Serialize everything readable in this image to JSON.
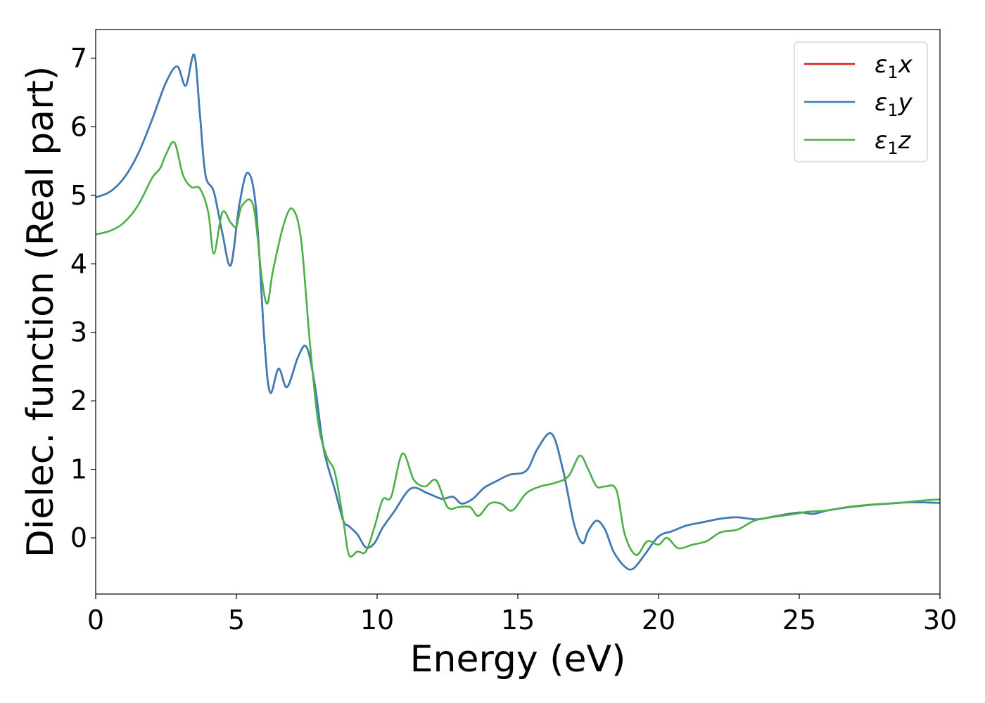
{
  "chart_data": {
    "type": "line",
    "title": "",
    "xlabel": "Energy (eV)",
    "ylabel": "Dielec. function (Real part)",
    "xlim": [
      0,
      30
    ],
    "ylim": [
      -0.82,
      7.42
    ],
    "xticks": [
      0,
      5,
      10,
      15,
      20,
      25,
      30
    ],
    "yticks": [
      0,
      1,
      2,
      3,
      4,
      5,
      6,
      7
    ],
    "grid": false,
    "legend_position": "top-right",
    "legend": [
      {
        "symbol": "ε",
        "subscript": "1",
        "axis": "x",
        "color": "#e41a1c"
      },
      {
        "symbol": "ε",
        "subscript": "1",
        "axis": "y",
        "color": "#377eb8"
      },
      {
        "symbol": "ε",
        "subscript": "1",
        "axis": "z",
        "color": "#4daf4a"
      }
    ],
    "series": [
      {
        "color": "#e41a1c",
        "x": [
          0,
          0.5,
          1.0,
          1.5,
          2.0,
          2.5,
          2.9,
          3.2,
          3.5,
          3.7,
          3.9,
          4.2,
          4.5,
          4.8,
          5.1,
          5.4,
          5.7,
          6.0,
          6.2,
          6.5,
          6.8,
          7.2,
          7.5,
          7.8,
          8.1,
          8.5,
          8.8,
          9.0,
          9.3,
          9.6,
          9.9,
          10.2,
          10.6,
          11.2,
          11.8,
          12.3,
          12.7,
          13.0,
          13.4,
          13.8,
          14.2,
          14.7,
          15.3,
          15.7,
          16.2,
          16.6,
          17.0,
          17.3,
          17.5,
          17.8,
          18.1,
          18.4,
          18.8,
          19.1,
          19.5,
          20.0,
          20.5,
          21.0,
          21.6,
          22.2,
          22.8,
          23.5,
          24.2,
          25.0,
          25.5,
          26.0,
          26.8,
          27.5,
          28.2,
          29.0,
          30.0
        ],
        "y": [
          4.97,
          5.05,
          5.25,
          5.6,
          6.1,
          6.65,
          6.88,
          6.6,
          7.05,
          6.2,
          5.3,
          5.05,
          4.45,
          3.98,
          4.85,
          5.33,
          4.8,
          2.85,
          2.12,
          2.47,
          2.2,
          2.65,
          2.78,
          2.2,
          1.3,
          0.7,
          0.25,
          0.17,
          0.05,
          -0.14,
          -0.08,
          0.15,
          0.38,
          0.72,
          0.65,
          0.57,
          0.6,
          0.5,
          0.57,
          0.73,
          0.82,
          0.92,
          0.98,
          1.3,
          1.52,
          1.0,
          0.2,
          -0.08,
          0.1,
          0.25,
          0.12,
          -0.2,
          -0.42,
          -0.45,
          -0.25,
          0.02,
          0.1,
          0.18,
          0.23,
          0.28,
          0.3,
          0.27,
          0.32,
          0.37,
          0.35,
          0.4,
          0.45,
          0.48,
          0.5,
          0.52,
          0.51
        ]
      },
      {
        "color": "#377eb8",
        "x": [
          0,
          0.5,
          1.0,
          1.5,
          2.0,
          2.5,
          2.9,
          3.2,
          3.5,
          3.7,
          3.9,
          4.2,
          4.5,
          4.8,
          5.1,
          5.4,
          5.7,
          6.0,
          6.2,
          6.5,
          6.8,
          7.2,
          7.5,
          7.8,
          8.1,
          8.5,
          8.8,
          9.0,
          9.3,
          9.6,
          9.9,
          10.2,
          10.6,
          11.2,
          11.8,
          12.3,
          12.7,
          13.0,
          13.4,
          13.8,
          14.2,
          14.7,
          15.3,
          15.7,
          16.2,
          16.6,
          17.0,
          17.3,
          17.5,
          17.8,
          18.1,
          18.4,
          18.8,
          19.1,
          19.5,
          20.0,
          20.5,
          21.0,
          21.6,
          22.2,
          22.8,
          23.5,
          24.2,
          25.0,
          25.5,
          26.0,
          26.8,
          27.5,
          28.2,
          29.0,
          30.0
        ],
        "y": [
          4.97,
          5.05,
          5.25,
          5.6,
          6.1,
          6.65,
          6.88,
          6.6,
          7.05,
          6.2,
          5.3,
          5.05,
          4.45,
          3.98,
          4.85,
          5.33,
          4.8,
          2.85,
          2.12,
          2.47,
          2.2,
          2.65,
          2.78,
          2.2,
          1.3,
          0.7,
          0.25,
          0.17,
          0.05,
          -0.14,
          -0.08,
          0.15,
          0.38,
          0.72,
          0.65,
          0.57,
          0.6,
          0.5,
          0.57,
          0.73,
          0.82,
          0.92,
          0.98,
          1.3,
          1.52,
          1.0,
          0.2,
          -0.08,
          0.1,
          0.25,
          0.12,
          -0.2,
          -0.42,
          -0.45,
          -0.25,
          0.02,
          0.1,
          0.18,
          0.23,
          0.28,
          0.3,
          0.27,
          0.32,
          0.37,
          0.35,
          0.4,
          0.45,
          0.48,
          0.5,
          0.52,
          0.51
        ]
      },
      {
        "color": "#4daf4a",
        "x": [
          0,
          0.5,
          1.0,
          1.5,
          2.0,
          2.3,
          2.5,
          2.8,
          3.1,
          3.4,
          3.7,
          4.0,
          4.2,
          4.5,
          4.8,
          5.0,
          5.2,
          5.6,
          5.9,
          6.1,
          6.3,
          6.7,
          7.0,
          7.3,
          7.6,
          7.9,
          8.2,
          8.5,
          8.8,
          9.0,
          9.3,
          9.6,
          9.9,
          10.2,
          10.5,
          10.9,
          11.3,
          11.7,
          12.1,
          12.5,
          12.9,
          13.3,
          13.6,
          14.0,
          14.4,
          14.8,
          15.3,
          15.8,
          16.3,
          16.8,
          17.2,
          17.5,
          17.8,
          18.1,
          18.5,
          18.8,
          19.2,
          19.6,
          20.0,
          20.3,
          20.7,
          21.2,
          21.7,
          22.2,
          22.8,
          23.4,
          24.0,
          24.7,
          25.3,
          26.0,
          26.7,
          27.4,
          28.1,
          28.8,
          29.5,
          30.0
        ],
        "y": [
          4.43,
          4.48,
          4.6,
          4.85,
          5.25,
          5.4,
          5.6,
          5.77,
          5.3,
          5.12,
          5.1,
          4.75,
          4.15,
          4.75,
          4.6,
          4.55,
          4.85,
          4.85,
          3.8,
          3.42,
          3.9,
          4.6,
          4.8,
          4.35,
          2.9,
          1.7,
          1.2,
          0.95,
          0.25,
          -0.25,
          -0.2,
          -0.2,
          0.15,
          0.56,
          0.6,
          1.23,
          0.85,
          0.75,
          0.84,
          0.45,
          0.45,
          0.45,
          0.32,
          0.5,
          0.5,
          0.4,
          0.65,
          0.75,
          0.8,
          0.9,
          1.2,
          1.0,
          0.75,
          0.75,
          0.7,
          0.05,
          -0.25,
          -0.05,
          -0.1,
          0.0,
          -0.15,
          -0.1,
          -0.05,
          0.08,
          0.12,
          0.25,
          0.3,
          0.34,
          0.38,
          0.4,
          0.45,
          0.48,
          0.5,
          0.52,
          0.55,
          0.56
        ]
      }
    ]
  }
}
